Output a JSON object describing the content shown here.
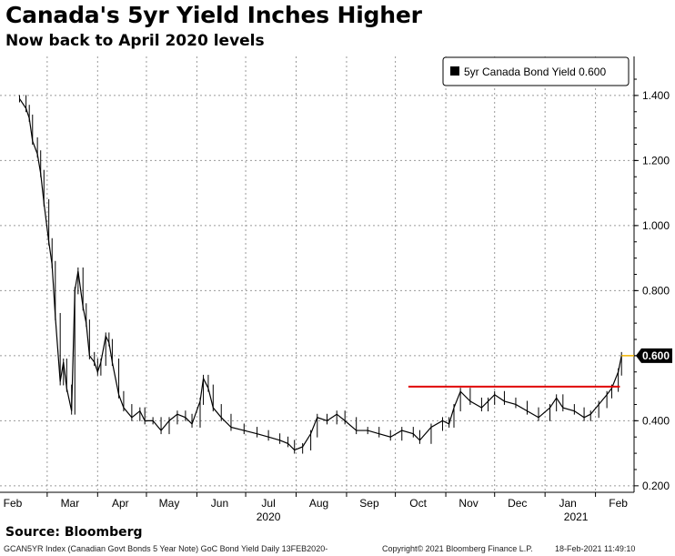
{
  "header": {
    "title": "Canada's 5yr Yield Inches Higher",
    "subtitle": "Now back to April 2020 levels"
  },
  "footer": {
    "source": "Source: Bloomberg",
    "ticker_note": "GCAN5YR Index (Canadian Govt Bonds 5 Year Note) GoC Bond Yield  Daily 13FEB2020-",
    "copyright": "Copyright© 2021 Bloomberg Finance L.P.",
    "timestamp": "18-Feb-2021 11:49:10"
  },
  "colors": {
    "series": "#000000",
    "resistance_line": "#e00000",
    "last_value_marker": "#f2b400",
    "grid": "#9a9a9a"
  },
  "chart_data": {
    "type": "line",
    "title": "Canada's 5yr Yield Inches Higher",
    "subtitle": "Now back to April 2020 levels",
    "xlabel": "",
    "ylabel": "",
    "y_axis_side": "right",
    "ylim": [
      0.18,
      1.52
    ],
    "yticks": [
      0.2,
      0.4,
      0.6,
      0.8,
      1.0,
      1.2,
      1.4
    ],
    "ytick_labels": [
      "0.200",
      "0.400",
      "0.600",
      "0.800",
      "1.000",
      "1.200",
      "1.400"
    ],
    "x_month_labels": [
      "Feb",
      "Mar",
      "Apr",
      "May",
      "Jun",
      "Jul",
      "Aug",
      "Sep",
      "Oct",
      "Nov",
      "Dec",
      "Jan",
      "Feb"
    ],
    "x_year_labels": [
      "2020",
      "2021"
    ],
    "grid": true,
    "legend_position": "top-right",
    "series": [
      {
        "name": "5yr Canada Bond Yield",
        "last_value": "0.600",
        "points": [
          [
            "2020-02-13",
            1.39
          ],
          [
            "2020-02-17",
            1.36
          ],
          [
            "2020-02-19",
            1.33
          ],
          [
            "2020-02-21",
            1.26
          ],
          [
            "2020-02-24",
            1.22
          ],
          [
            "2020-02-26",
            1.16
          ],
          [
            "2020-02-28",
            1.07
          ],
          [
            "2020-03-02",
            0.95
          ],
          [
            "2020-03-04",
            0.88
          ],
          [
            "2020-03-06",
            0.72
          ],
          [
            "2020-03-09",
            0.52
          ],
          [
            "2020-03-11",
            0.58
          ],
          [
            "2020-03-13",
            0.5
          ],
          [
            "2020-03-16",
            0.43
          ],
          [
            "2020-03-18",
            0.8
          ],
          [
            "2020-03-20",
            0.86
          ],
          [
            "2020-03-23",
            0.75
          ],
          [
            "2020-03-25",
            0.7
          ],
          [
            "2020-03-27",
            0.6
          ],
          [
            "2020-03-30",
            0.58
          ],
          [
            "2020-04-01",
            0.55
          ],
          [
            "2020-04-03",
            0.58
          ],
          [
            "2020-04-06",
            0.66
          ],
          [
            "2020-04-08",
            0.64
          ],
          [
            "2020-04-10",
            0.58
          ],
          [
            "2020-04-14",
            0.48
          ],
          [
            "2020-04-17",
            0.44
          ],
          [
            "2020-04-22",
            0.41
          ],
          [
            "2020-04-27",
            0.43
          ],
          [
            "2020-04-30",
            0.4
          ],
          [
            "2020-05-05",
            0.4
          ],
          [
            "2020-05-10",
            0.37
          ],
          [
            "2020-05-15",
            0.4
          ],
          [
            "2020-05-20",
            0.42
          ],
          [
            "2020-05-25",
            0.41
          ],
          [
            "2020-05-29",
            0.39
          ],
          [
            "2020-06-03",
            0.46
          ],
          [
            "2020-06-05",
            0.53
          ],
          [
            "2020-06-08",
            0.5
          ],
          [
            "2020-06-11",
            0.44
          ],
          [
            "2020-06-16",
            0.41
          ],
          [
            "2020-06-22",
            0.38
          ],
          [
            "2020-06-30",
            0.37
          ],
          [
            "2020-07-08",
            0.36
          ],
          [
            "2020-07-15",
            0.35
          ],
          [
            "2020-07-22",
            0.34
          ],
          [
            "2020-07-27",
            0.33
          ],
          [
            "2020-07-31",
            0.31
          ],
          [
            "2020-08-05",
            0.32
          ],
          [
            "2020-08-10",
            0.36
          ],
          [
            "2020-08-14",
            0.41
          ],
          [
            "2020-08-20",
            0.4
          ],
          [
            "2020-08-26",
            0.42
          ],
          [
            "2020-08-31",
            0.4
          ],
          [
            "2020-09-07",
            0.37
          ],
          [
            "2020-09-14",
            0.37
          ],
          [
            "2020-09-21",
            0.36
          ],
          [
            "2020-09-28",
            0.35
          ],
          [
            "2020-10-05",
            0.37
          ],
          [
            "2020-10-12",
            0.36
          ],
          [
            "2020-10-16",
            0.34
          ],
          [
            "2020-10-23",
            0.38
          ],
          [
            "2020-10-30",
            0.4
          ],
          [
            "2020-11-03",
            0.39
          ],
          [
            "2020-11-06",
            0.44
          ],
          [
            "2020-11-10",
            0.49
          ],
          [
            "2020-11-16",
            0.46
          ],
          [
            "2020-11-23",
            0.44
          ],
          [
            "2020-11-27",
            0.46
          ],
          [
            "2020-12-01",
            0.48
          ],
          [
            "2020-12-07",
            0.46
          ],
          [
            "2020-12-14",
            0.45
          ],
          [
            "2020-12-21",
            0.43
          ],
          [
            "2020-12-28",
            0.41
          ],
          [
            "2021-01-04",
            0.44
          ],
          [
            "2021-01-08",
            0.47
          ],
          [
            "2021-01-12",
            0.44
          ],
          [
            "2021-01-19",
            0.43
          ],
          [
            "2021-01-25",
            0.41
          ],
          [
            "2021-01-29",
            0.42
          ],
          [
            "2021-02-03",
            0.45
          ],
          [
            "2021-02-08",
            0.48
          ],
          [
            "2021-02-11",
            0.5
          ],
          [
            "2021-02-15",
            0.55
          ],
          [
            "2021-02-17",
            0.6
          ]
        ]
      }
    ],
    "annotations": [
      {
        "type": "hline",
        "y": 0.505,
        "x_start": "2020-10-09",
        "x_end": "2021-02-16",
        "color": "#e00000"
      }
    ]
  }
}
